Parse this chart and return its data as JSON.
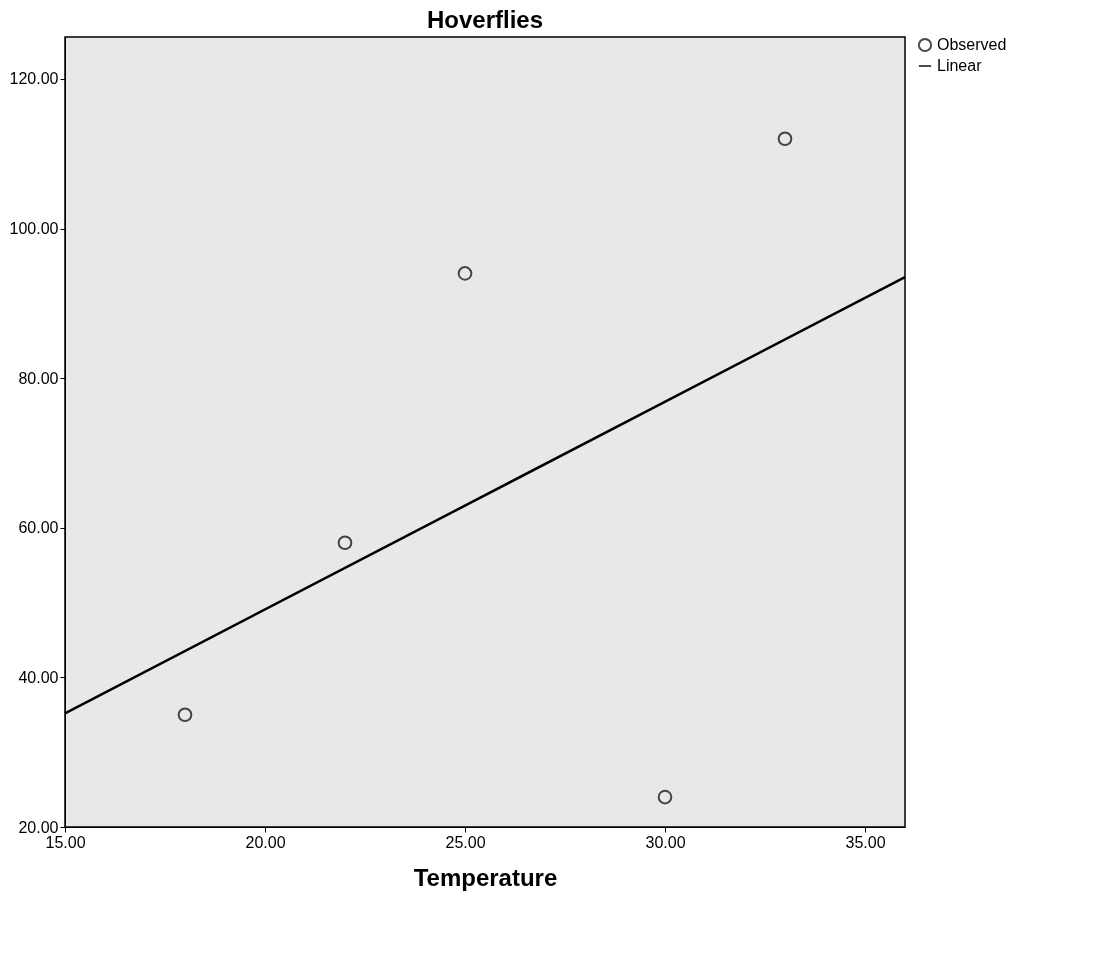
{
  "chart_data": {
    "type": "scatter",
    "title": "Hoverflies",
    "xlabel": "Temperature",
    "xlim": [
      15,
      36
    ],
    "ylim": [
      20,
      125.6
    ],
    "xticks": [
      {
        "value": 15,
        "label": "15.00"
      },
      {
        "value": 20,
        "label": "20.00"
      },
      {
        "value": 25,
        "label": "25.00"
      },
      {
        "value": 30,
        "label": "30.00"
      },
      {
        "value": 35,
        "label": "35.00"
      }
    ],
    "yticks": [
      {
        "value": 20,
        "label": "20.00"
      },
      {
        "value": 40,
        "label": "40.00"
      },
      {
        "value": 60,
        "label": "60.00"
      },
      {
        "value": 80,
        "label": "80.00"
      },
      {
        "value": 100,
        "label": "100.00"
      },
      {
        "value": 120,
        "label": "120.00"
      }
    ],
    "series": [
      {
        "name": "Observed",
        "color": "#000000",
        "marker": "circle",
        "x": [
          18,
          22,
          25,
          30,
          33
        ],
        "values": [
          35,
          58,
          94,
          24,
          112
        ]
      },
      {
        "name": "Linear",
        "type": "line",
        "color": "#000000",
        "line_style": "solid",
        "marker": "none",
        "x": [
          15,
          36
        ],
        "values": [
          35.2,
          93.5
        ]
      }
    ],
    "grid": false,
    "legend": "top right"
  }
}
